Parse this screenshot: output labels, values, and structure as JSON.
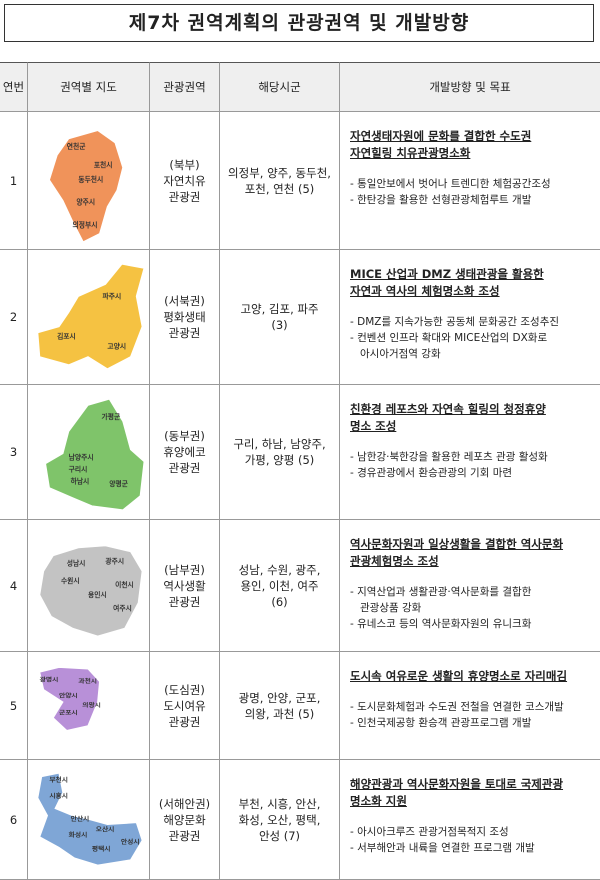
{
  "title": "제7차 권역계획의 관광권역 및 개발방향",
  "table": {
    "headers": [
      "연번",
      "권역별 지도",
      "관광권역",
      "해당시군",
      "개발방향 및 목표"
    ],
    "rows": [
      {
        "no": "1",
        "map_labels": [
          "연천군",
          "포천시",
          "동두천시",
          "양주시",
          "의정부시"
        ],
        "zone": [
          "(북부)",
          "자연치유",
          "관광권"
        ],
        "cities": [
          "의정부, 양주, 동두천,",
          "포천, 연천 (5)"
        ],
        "goal": [
          "자연생태자원에 문화를 결합한 수도권",
          "자연힐링 치유관광명소화"
        ],
        "tasks": [
          [
            "- 통일안보에서 벗어나 트렌디한 체험공간조성"
          ],
          [
            "- 한탄강을 활용한 선형관광체험루트 개발"
          ]
        ]
      },
      {
        "no": "2",
        "map_labels": [
          "파주시",
          "김포시",
          "고양시"
        ],
        "zone": [
          "(서북권)",
          "평화생태",
          "관광권"
        ],
        "cities": [
          "고양, 김포, 파주",
          "(3)"
        ],
        "goal": [
          "MICE 산업과 DMZ 생태관광을 활용한",
          "자연과 역사의 체험명소화 조성"
        ],
        "tasks": [
          [
            "- DMZ를 지속가능한 공동체 문화공간 조성추진"
          ],
          [
            "- 컨벤션 인프라 확대와 MICE산업의 DX화로",
            "아시아거점역 강화"
          ]
        ]
      },
      {
        "no": "3",
        "map_labels": [
          "가평군",
          "남양주시",
          "구리시",
          "하남시",
          "양평군"
        ],
        "zone": [
          "(동부권)",
          "휴양에코",
          "관광권"
        ],
        "cities": [
          "구리, 하남, 남양주,",
          "가평, 양평 (5)"
        ],
        "goal": [
          "친환경 레포츠와 자연속 힐링의 청정휴양",
          "명소 조성"
        ],
        "tasks": [
          [
            "- 남한강·북한강을 활용한 레포츠 관광 활성화"
          ],
          [
            "- 경유관광에서 환승관광의 기회 마련"
          ]
        ]
      },
      {
        "no": "4",
        "map_labels": [
          "성남시",
          "광주시",
          "수원시",
          "용인시",
          "이천시",
          "여주시"
        ],
        "zone": [
          "(남부권)",
          "역사생활",
          "관광권"
        ],
        "cities": [
          "성남, 수원, 광주,",
          "용인, 이천, 여주",
          "(6)"
        ],
        "goal": [
          "역사문화자원과 일상생활을 결합한 역사문화",
          "관광체험명소 조성"
        ],
        "tasks": [
          [
            "- 지역산업과 생활관광·역사문화를 결합한",
            "관광상품 강화"
          ],
          [
            "- 유네스코 등의 역사문화자원의 유니크화"
          ]
        ]
      },
      {
        "no": "5",
        "map_labels": [
          "광명시",
          "과천시",
          "안양시",
          "의왕시",
          "군포시"
        ],
        "zone": [
          "(도심권)",
          "도시여유",
          "관광권"
        ],
        "cities": [
          "광명, 안양, 군포,",
          "의왕, 과천 (5)"
        ],
        "goal": [
          "도시속 여유로운 생활의 휴양명소로 자리매김"
        ],
        "tasks": [
          [
            "- 도시문화체험과 수도권 전철을 연결한 코스개발"
          ],
          [
            "- 인천국제공항 환승객 관광프로그램 개발"
          ]
        ]
      },
      {
        "no": "6",
        "map_labels": [
          "부천시",
          "시흥시",
          "안산시",
          "화성시",
          "오산시",
          "평택시",
          "안성시"
        ],
        "zone": [
          "(서해안권)",
          "해양문화",
          "관광권"
        ],
        "cities": [
          "부천, 시흥, 안산,",
          "화성, 오산, 평택,",
          "안성 (7)"
        ],
        "goal": [
          "해양관광과 역사문화자원을 토대로 국제관광",
          "명소화 지원"
        ],
        "tasks": [
          [
            "- 아시아크루즈 관광거점목적지 조성"
          ],
          [
            "- 서부해안과 내륙을 연결한 프로그램 개발"
          ]
        ]
      }
    ]
  }
}
